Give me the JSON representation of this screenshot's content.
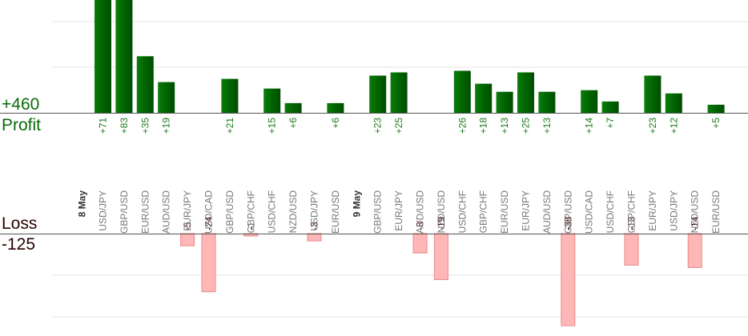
{
  "chart_data": {
    "type": "bar",
    "profit_total": "+460",
    "profit_label": "Profit",
    "loss_label": "Loss",
    "loss_total": "-125",
    "groups": [
      {
        "date": "8 May",
        "pairs": [
          "USD/JPY",
          "GBP/USD",
          "EUR/USD",
          "AUD/USD",
          "EUR/JPY",
          "USD/CAD",
          "GBP/USD",
          "GBP/CHF",
          "USD/CHF",
          "NZD/USD",
          "USD/JPY",
          "EUR/USD"
        ]
      },
      {
        "date": "9 May",
        "pairs": [
          "GBP/USD",
          "EUR/JPY",
          "AUD/USD",
          "NZD/USD",
          "USD/CHF",
          "GBP/CHF",
          "EUR/USD",
          "EUR/JPY",
          "AUD/USD",
          "GBP/USD",
          "USD/CAD",
          "USD/CHF",
          "GBP/CHF",
          "EUR/JPY",
          "USD/JPY",
          "NZD/USD",
          "EUR/USD"
        ]
      }
    ],
    "values": [
      71,
      83,
      35,
      19,
      -5,
      -24,
      21,
      -1,
      15,
      6,
      -3,
      6,
      23,
      25,
      -8,
      -19,
      26,
      18,
      13,
      25,
      13,
      -38,
      14,
      7,
      -13,
      23,
      12,
      -14,
      5
    ],
    "colors": {
      "profit": "#006400",
      "profit_text": "#1a7a1a",
      "loss": "#ffb6b6",
      "loss_border": "#e88a8a",
      "loss_text": "#3a0000",
      "grid": "#e6e6e6",
      "baseline": "#555555",
      "axis_text": "#777777"
    }
  }
}
